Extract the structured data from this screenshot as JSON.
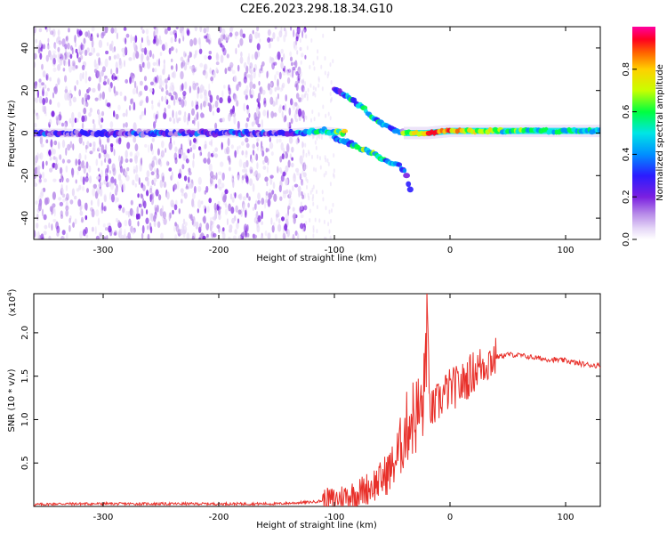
{
  "figure_title": "C2E6.2023.298.18.34.G10",
  "colors": {
    "snr_line": "#e8302a",
    "spectrogram_scale": [
      "#ffffff",
      "#e6d8f7",
      "#b78ae8",
      "#7a1fe0",
      "#2b1cff",
      "#0090ff",
      "#00e5e5",
      "#00ff40",
      "#c8ff00",
      "#ffd000",
      "#ff6000",
      "#ff0020",
      "#ff00a0"
    ],
    "axis": "#000000"
  },
  "chart_data": [
    {
      "type": "heatmap",
      "xlabel": "Height of straight line (km)",
      "ylabel": "Frequency (Hz)",
      "xlim": [
        -360,
        130
      ],
      "ylim": [
        -50,
        50
      ],
      "xticks": [
        -300,
        -200,
        -100,
        0,
        100
      ],
      "yticks": [
        -40,
        -20,
        0,
        20,
        40
      ],
      "colorbar": {
        "label": "Normalized spectral amplitude",
        "range": [
          0.0,
          1.0
        ],
        "ticks": [
          "0.0",
          "0.2",
          "0.4",
          "0.6",
          "0.8"
        ]
      },
      "features": [
        {
          "kind": "carrier",
          "x": [
            -360,
            -140,
            -110,
            -90
          ],
          "y": [
            0,
            0,
            1,
            0
          ],
          "amplitude": [
            0.25,
            0.3,
            0.5,
            0.6
          ]
        },
        {
          "kind": "upper-branch",
          "x": [
            -100,
            -85,
            -70,
            -55,
            -45,
            -40
          ],
          "y": [
            21,
            16,
            9,
            3,
            1,
            0
          ],
          "amplitude": [
            0.3,
            0.45,
            0.5,
            0.4,
            0.35,
            0.3
          ]
        },
        {
          "kind": "lower-branch",
          "x": [
            -100,
            -85,
            -70,
            -55,
            -45,
            -38,
            -34
          ],
          "y": [
            -2,
            -5,
            -9,
            -13,
            -15,
            -19,
            -28
          ],
          "amplitude": [
            0.3,
            0.5,
            0.55,
            0.45,
            0.4,
            0.35,
            0.3
          ]
        },
        {
          "kind": "carrier-strong",
          "x": [
            -40,
            -20,
            0,
            50,
            100,
            130
          ],
          "y": [
            0,
            0,
            1,
            1,
            1,
            1
          ],
          "amplitude": [
            0.6,
            0.85,
            0.8,
            0.55,
            0.5,
            0.5
          ]
        }
      ]
    },
    {
      "type": "line",
      "xlabel": "Height of straight line (km)",
      "ylabel": "SNR (10 * v/v)",
      "scale_label": "(x10",
      "scale_exp": "4",
      "scale_close": ")",
      "xlim": [
        -360,
        130
      ],
      "ylim": [
        0,
        2.45
      ],
      "xticks": [
        -300,
        -200,
        -100,
        0,
        100
      ],
      "yticks": [
        "0.5",
        "1.0",
        "1.5",
        "2.0"
      ],
      "series": [
        {
          "x": [
            -360,
            -340,
            -300,
            -250,
            -200,
            -150,
            -120,
            -100,
            -90,
            -80,
            -70,
            -60,
            -50,
            -45,
            -40,
            -35,
            -30,
            -25,
            -22,
            -20,
            -18,
            -15,
            -10,
            -5,
            0,
            10,
            20,
            30,
            40,
            50,
            60,
            70,
            80,
            90,
            100,
            110,
            120,
            130
          ],
          "y": [
            0.02,
            0.03,
            0.03,
            0.03,
            0.03,
            0.03,
            0.05,
            0.08,
            0.12,
            0.15,
            0.22,
            0.3,
            0.45,
            0.6,
            0.8,
            1.0,
            1.05,
            1.1,
            1.3,
            2.45,
            1.2,
            1.1,
            1.2,
            1.3,
            1.35,
            1.4,
            1.55,
            1.65,
            1.72,
            1.75,
            1.74,
            1.72,
            1.7,
            1.69,
            1.68,
            1.65,
            1.63,
            1.62
          ]
        }
      ]
    }
  ]
}
